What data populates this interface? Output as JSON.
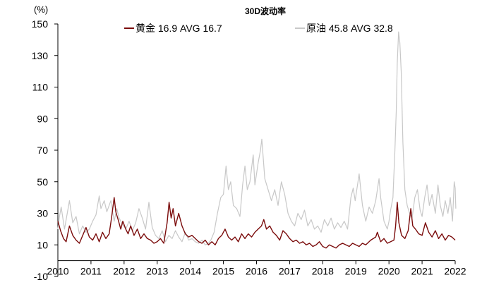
{
  "chart_data": {
    "type": "line",
    "title": "30D波动率",
    "yunit": "(%)",
    "ylim": [
      -10,
      150
    ],
    "yticks": [
      -10,
      10,
      30,
      50,
      70,
      90,
      110,
      130,
      150
    ],
    "xlim": [
      2010,
      2022
    ],
    "xticks": [
      "2010",
      "2011",
      "2012",
      "2013",
      "2014",
      "2015",
      "2016",
      "2017",
      "2018",
      "2019",
      "2020",
      "2021",
      "2022"
    ],
    "grid": false,
    "legend_position": "top",
    "series": [
      {
        "name": "黄金",
        "legend_label": "黄金 16.9 AVG 16.7",
        "latest": 16.9,
        "avg": 16.7,
        "color": "#7b0c0c",
        "points": [
          [
            2010.0,
            25
          ],
          [
            2010.08,
            19
          ],
          [
            2010.17,
            14
          ],
          [
            2010.25,
            12
          ],
          [
            2010.35,
            22
          ],
          [
            2010.45,
            16
          ],
          [
            2010.55,
            13
          ],
          [
            2010.65,
            11
          ],
          [
            2010.75,
            16
          ],
          [
            2010.85,
            21
          ],
          [
            2010.95,
            15
          ],
          [
            2011.05,
            13
          ],
          [
            2011.15,
            17
          ],
          [
            2011.25,
            12
          ],
          [
            2011.35,
            18
          ],
          [
            2011.45,
            14
          ],
          [
            2011.55,
            17
          ],
          [
            2011.62,
            27
          ],
          [
            2011.7,
            40
          ],
          [
            2011.75,
            31
          ],
          [
            2011.82,
            26
          ],
          [
            2011.9,
            20
          ],
          [
            2011.96,
            25
          ],
          [
            2012.05,
            20
          ],
          [
            2012.12,
            17
          ],
          [
            2012.2,
            22
          ],
          [
            2012.3,
            16
          ],
          [
            2012.4,
            20
          ],
          [
            2012.5,
            14
          ],
          [
            2012.6,
            17
          ],
          [
            2012.7,
            14
          ],
          [
            2012.8,
            13
          ],
          [
            2012.9,
            11
          ],
          [
            2013.0,
            12
          ],
          [
            2013.1,
            14
          ],
          [
            2013.2,
            11
          ],
          [
            2013.3,
            24
          ],
          [
            2013.36,
            37
          ],
          [
            2013.42,
            27
          ],
          [
            2013.48,
            33
          ],
          [
            2013.55,
            22
          ],
          [
            2013.65,
            30
          ],
          [
            2013.75,
            22
          ],
          [
            2013.85,
            17
          ],
          [
            2013.95,
            15
          ],
          [
            2014.05,
            16
          ],
          [
            2014.15,
            14
          ],
          [
            2014.25,
            12
          ],
          [
            2014.35,
            11
          ],
          [
            2014.45,
            13
          ],
          [
            2014.55,
            10
          ],
          [
            2014.65,
            12
          ],
          [
            2014.75,
            10
          ],
          [
            2014.85,
            14
          ],
          [
            2014.95,
            16
          ],
          [
            2015.05,
            20
          ],
          [
            2015.15,
            15
          ],
          [
            2015.25,
            13
          ],
          [
            2015.35,
            15
          ],
          [
            2015.45,
            12
          ],
          [
            2015.55,
            17
          ],
          [
            2015.65,
            14
          ],
          [
            2015.75,
            17
          ],
          [
            2015.85,
            15
          ],
          [
            2015.95,
            18
          ],
          [
            2016.05,
            20
          ],
          [
            2016.15,
            22
          ],
          [
            2016.22,
            26
          ],
          [
            2016.3,
            20
          ],
          [
            2016.4,
            22
          ],
          [
            2016.5,
            18
          ],
          [
            2016.6,
            16
          ],
          [
            2016.7,
            13
          ],
          [
            2016.8,
            19
          ],
          [
            2016.9,
            17
          ],
          [
            2017.0,
            14
          ],
          [
            2017.1,
            12
          ],
          [
            2017.2,
            13
          ],
          [
            2017.3,
            11
          ],
          [
            2017.4,
            12
          ],
          [
            2017.5,
            10
          ],
          [
            2017.6,
            11
          ],
          [
            2017.7,
            9
          ],
          [
            2017.8,
            10
          ],
          [
            2017.9,
            12
          ],
          [
            2018.0,
            9
          ],
          [
            2018.1,
            8
          ],
          [
            2018.2,
            10
          ],
          [
            2018.3,
            9
          ],
          [
            2018.4,
            8
          ],
          [
            2018.5,
            10
          ],
          [
            2018.6,
            11
          ],
          [
            2018.7,
            10
          ],
          [
            2018.8,
            9
          ],
          [
            2018.9,
            11
          ],
          [
            2019.0,
            10
          ],
          [
            2019.1,
            9
          ],
          [
            2019.2,
            11
          ],
          [
            2019.3,
            10
          ],
          [
            2019.45,
            13
          ],
          [
            2019.6,
            15
          ],
          [
            2019.65,
            18
          ],
          [
            2019.75,
            12
          ],
          [
            2019.85,
            14
          ],
          [
            2019.95,
            11
          ],
          [
            2020.05,
            12
          ],
          [
            2020.15,
            13
          ],
          [
            2020.2,
            22
          ],
          [
            2020.25,
            37
          ],
          [
            2020.3,
            24
          ],
          [
            2020.38,
            16
          ],
          [
            2020.48,
            14
          ],
          [
            2020.58,
            19
          ],
          [
            2020.66,
            33
          ],
          [
            2020.72,
            22
          ],
          [
            2020.8,
            20
          ],
          [
            2020.9,
            17
          ],
          [
            2021.0,
            16
          ],
          [
            2021.1,
            24
          ],
          [
            2021.2,
            18
          ],
          [
            2021.3,
            15
          ],
          [
            2021.4,
            19
          ],
          [
            2021.5,
            14
          ],
          [
            2021.6,
            17
          ],
          [
            2021.7,
            13
          ],
          [
            2021.8,
            16
          ],
          [
            2021.9,
            15
          ],
          [
            2022.0,
            13
          ]
        ]
      },
      {
        "name": "原油",
        "legend_label": "原油 45.8 AVG 32.8",
        "latest": 45.8,
        "avg": 32.8,
        "color": "#c8c8c8",
        "points": [
          [
            2010.0,
            20
          ],
          [
            2010.05,
            28
          ],
          [
            2010.1,
            34
          ],
          [
            2010.2,
            20
          ],
          [
            2010.35,
            38
          ],
          [
            2010.45,
            24
          ],
          [
            2010.55,
            28
          ],
          [
            2010.65,
            17
          ],
          [
            2010.75,
            22
          ],
          [
            2010.85,
            18
          ],
          [
            2010.95,
            20
          ],
          [
            2011.05,
            25
          ],
          [
            2011.15,
            29
          ],
          [
            2011.25,
            41
          ],
          [
            2011.3,
            33
          ],
          [
            2011.4,
            38
          ],
          [
            2011.48,
            31
          ],
          [
            2011.6,
            38
          ],
          [
            2011.7,
            25
          ],
          [
            2011.78,
            33
          ],
          [
            2011.85,
            27
          ],
          [
            2011.95,
            23
          ],
          [
            2012.05,
            20
          ],
          [
            2012.15,
            25
          ],
          [
            2012.25,
            19
          ],
          [
            2012.35,
            24
          ],
          [
            2012.45,
            33
          ],
          [
            2012.55,
            27
          ],
          [
            2012.65,
            20
          ],
          [
            2012.75,
            37
          ],
          [
            2012.85,
            21
          ],
          [
            2012.95,
            16
          ],
          [
            2013.05,
            14
          ],
          [
            2013.15,
            19
          ],
          [
            2013.25,
            12
          ],
          [
            2013.35,
            16
          ],
          [
            2013.45,
            14
          ],
          [
            2013.55,
            19
          ],
          [
            2013.65,
            15
          ],
          [
            2013.75,
            12
          ],
          [
            2013.85,
            18
          ],
          [
            2013.95,
            13
          ],
          [
            2014.05,
            14
          ],
          [
            2014.15,
            12
          ],
          [
            2014.25,
            11
          ],
          [
            2014.35,
            13
          ],
          [
            2014.45,
            10
          ],
          [
            2014.55,
            11
          ],
          [
            2014.62,
            13
          ],
          [
            2014.72,
            18
          ],
          [
            2014.82,
            30
          ],
          [
            2014.92,
            40
          ],
          [
            2015.0,
            42
          ],
          [
            2015.08,
            60
          ],
          [
            2015.15,
            45
          ],
          [
            2015.22,
            50
          ],
          [
            2015.3,
            35
          ],
          [
            2015.4,
            33
          ],
          [
            2015.5,
            28
          ],
          [
            2015.58,
            48
          ],
          [
            2015.65,
            60
          ],
          [
            2015.72,
            45
          ],
          [
            2015.8,
            50
          ],
          [
            2015.9,
            67
          ],
          [
            2015.95,
            48
          ],
          [
            2016.05,
            62
          ],
          [
            2016.12,
            70
          ],
          [
            2016.16,
            77
          ],
          [
            2016.25,
            52
          ],
          [
            2016.35,
            45
          ],
          [
            2016.45,
            38
          ],
          [
            2016.55,
            45
          ],
          [
            2016.65,
            35
          ],
          [
            2016.75,
            50
          ],
          [
            2016.85,
            42
          ],
          [
            2016.95,
            30
          ],
          [
            2017.05,
            25
          ],
          [
            2017.15,
            22
          ],
          [
            2017.25,
            30
          ],
          [
            2017.35,
            26
          ],
          [
            2017.45,
            32
          ],
          [
            2017.55,
            22
          ],
          [
            2017.65,
            26
          ],
          [
            2017.75,
            20
          ],
          [
            2017.85,
            22
          ],
          [
            2017.95,
            18
          ],
          [
            2018.05,
            26
          ],
          [
            2018.15,
            22
          ],
          [
            2018.25,
            27
          ],
          [
            2018.35,
            20
          ],
          [
            2018.45,
            24
          ],
          [
            2018.55,
            21
          ],
          [
            2018.65,
            25
          ],
          [
            2018.75,
            20
          ],
          [
            2018.85,
            40
          ],
          [
            2018.92,
            46
          ],
          [
            2018.98,
            38
          ],
          [
            2019.05,
            48
          ],
          [
            2019.1,
            55
          ],
          [
            2019.2,
            35
          ],
          [
            2019.3,
            25
          ],
          [
            2019.4,
            34
          ],
          [
            2019.5,
            30
          ],
          [
            2019.6,
            38
          ],
          [
            2019.7,
            52
          ],
          [
            2019.75,
            40
          ],
          [
            2019.85,
            25
          ],
          [
            2019.95,
            20
          ],
          [
            2020.0,
            25
          ],
          [
            2020.05,
            32
          ],
          [
            2020.12,
            40
          ],
          [
            2020.18,
            70
          ],
          [
            2020.22,
            95
          ],
          [
            2020.25,
            125
          ],
          [
            2020.29,
            145
          ],
          [
            2020.33,
            138
          ],
          [
            2020.37,
            120
          ],
          [
            2020.42,
            75
          ],
          [
            2020.48,
            45
          ],
          [
            2020.55,
            35
          ],
          [
            2020.62,
            30
          ],
          [
            2020.7,
            27
          ],
          [
            2020.78,
            40
          ],
          [
            2020.86,
            45
          ],
          [
            2020.94,
            32
          ],
          [
            2021.0,
            28
          ],
          [
            2021.08,
            40
          ],
          [
            2021.15,
            48
          ],
          [
            2021.22,
            35
          ],
          [
            2021.3,
            42
          ],
          [
            2021.4,
            30
          ],
          [
            2021.48,
            48
          ],
          [
            2021.55,
            35
          ],
          [
            2021.63,
            28
          ],
          [
            2021.7,
            38
          ],
          [
            2021.78,
            30
          ],
          [
            2021.85,
            40
          ],
          [
            2021.92,
            25
          ],
          [
            2021.97,
            50
          ],
          [
            2022.0,
            46
          ],
          [
            2022.02,
            33
          ]
        ]
      }
    ]
  }
}
